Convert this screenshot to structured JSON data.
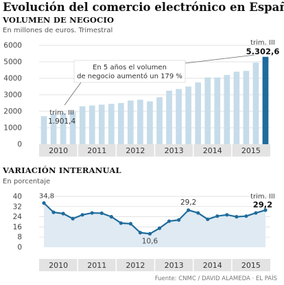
{
  "header": {
    "title": "Evolución del comercio electrónico en España",
    "source": "Fuente: CNMC / DAVID ALAMEDA · EL PAÍS"
  },
  "colors": {
    "bar": "#c6dcea",
    "bar_highlight": "#1f6b9c",
    "line": "#1f6b9c",
    "area": "#dfeaf3",
    "axis_band": "#e3e3e3",
    "grid": "#d9d9d9"
  },
  "chart_data": [
    {
      "type": "bar",
      "title": "VOLUMEN DE NEGOCIO",
      "subtitle": "En millones de euros. Trimestral",
      "ylim": [
        0,
        6000
      ],
      "yticks": [
        0,
        1000,
        2000,
        3000,
        4000,
        5000,
        6000
      ],
      "year_labels": [
        "2010",
        "2011",
        "2012",
        "2013",
        "2014",
        "2015"
      ],
      "values": [
        1700,
        1850,
        1901.4,
        2000,
        2300,
        2350,
        2400,
        2450,
        2500,
        2650,
        2700,
        2600,
        2850,
        3250,
        3350,
        3500,
        3750,
        4050,
        4050,
        4200,
        4400,
        4450,
        4950,
        5302.6
      ],
      "annotations": [
        {
          "label": "trim. III",
          "value_label": "1.901,4",
          "index": 2
        },
        {
          "label": "trim. III",
          "value_label": "5.302,6",
          "index": 23
        }
      ],
      "note": "En 5 años el volumen de negocio aumentó un 179 %"
    },
    {
      "type": "line",
      "title": "VARIACIÓN INTERANUAL",
      "subtitle": "En porcentaje",
      "ylim": [
        0,
        40
      ],
      "yticks": [
        0,
        8,
        16,
        24,
        32,
        40
      ],
      "year_labels": [
        "2010",
        "2011",
        "2012",
        "2013",
        "2014",
        "2015"
      ],
      "values": [
        34.8,
        27.5,
        26.5,
        22.5,
        25.5,
        27.0,
        26.8,
        24.0,
        19.0,
        18.5,
        11.5,
        10.6,
        15.0,
        20.5,
        21.5,
        29.2,
        27.0,
        22.0,
        24.5,
        25.5,
        24.0,
        24.5,
        27.0,
        29.2
      ],
      "annotations": [
        {
          "value_label": "34,8",
          "index": 0
        },
        {
          "value_label": "10,6",
          "index": 11
        },
        {
          "value_label": "29,2",
          "index": 15
        },
        {
          "label": "trim. III",
          "value_label": "29,2",
          "index": 23
        }
      ]
    }
  ]
}
